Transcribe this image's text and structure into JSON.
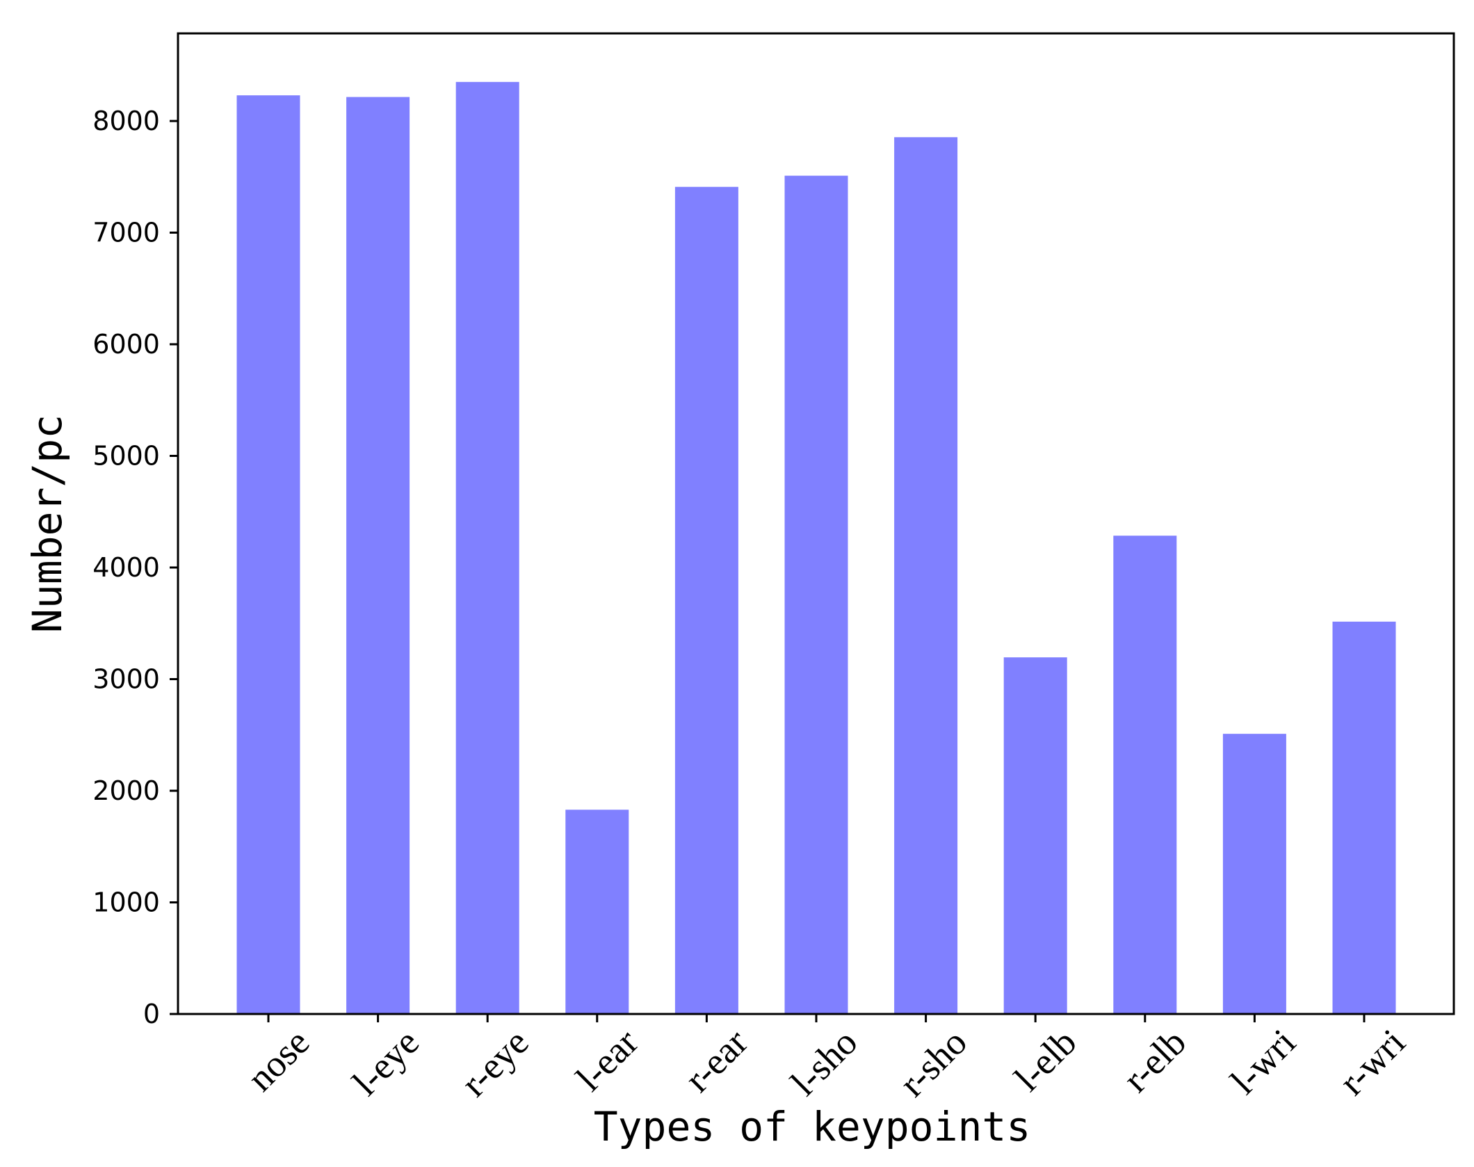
{
  "chart_data": {
    "type": "bar",
    "title": "",
    "xlabel": "Types of keypoints",
    "ylabel": "Number/pc",
    "categories": [
      "nose",
      "l-eye",
      "r-eye",
      "l-ear",
      "r-ear",
      "l-sho",
      "r-sho",
      "l-elb",
      "r-elb",
      "l-wri",
      "r-wri"
    ],
    "values": [
      8230,
      8215,
      8350,
      1830,
      7410,
      7510,
      7855,
      3195,
      4285,
      2510,
      3515
    ],
    "ylim": [
      0,
      8800
    ],
    "yticks": [
      0,
      1000,
      2000,
      3000,
      4000,
      5000,
      6000,
      7000,
      8000
    ],
    "ytick_labels": [
      "0",
      "1000",
      "2000",
      "3000",
      "4000",
      "5000",
      "6000",
      "7000",
      "8000"
    ],
    "bar_color": "#8080ff",
    "grid": false,
    "legend": "none"
  }
}
